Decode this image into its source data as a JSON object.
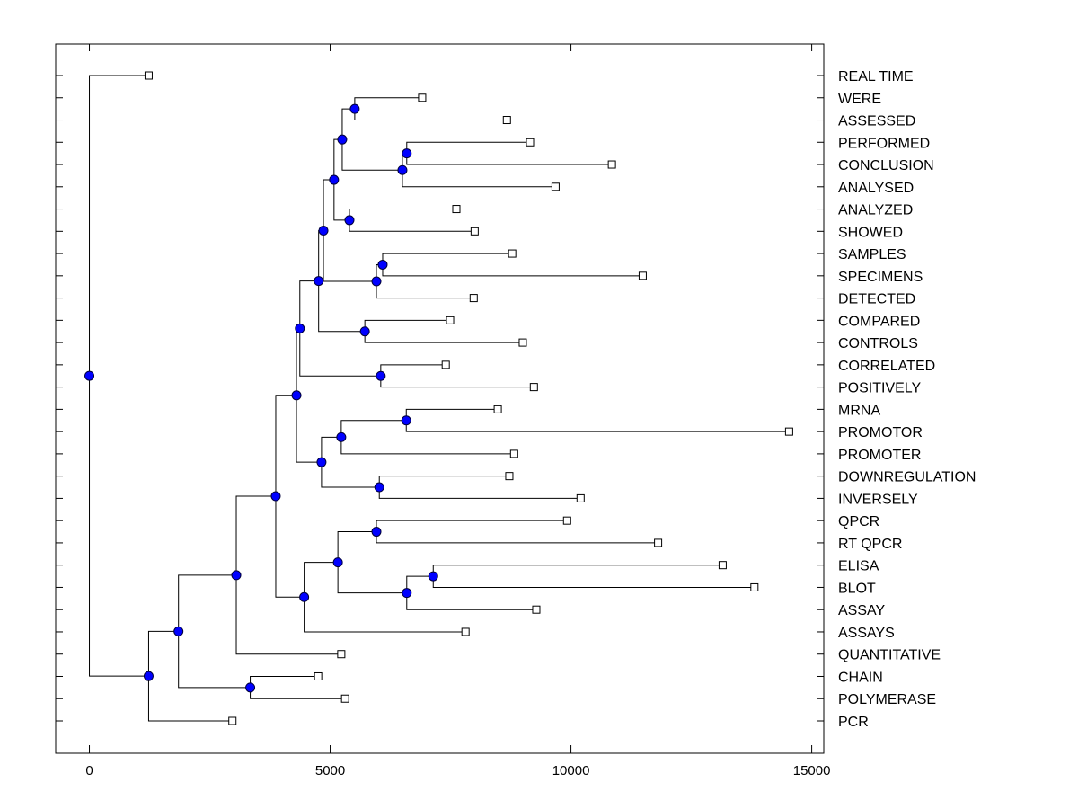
{
  "chart_data": {
    "type": "dendrogram",
    "title": "",
    "xlabel": "",
    "ylabel": "",
    "xlim": [
      -700,
      15250
    ],
    "x_ticks": [
      0,
      5000,
      10000,
      15000
    ],
    "x_tick_labels": [
      "0",
      "5000",
      "10000",
      "15000"
    ],
    "grid": false,
    "leaf_label_position": "right",
    "colors": {
      "node_fill": "#0000ff",
      "node_stroke": "#00003a",
      "leaf_fill": "#ffffff",
      "line": "#000000"
    },
    "leaves": [
      {
        "label": "REAL TIME",
        "value": 1230
      },
      {
        "label": "WERE",
        "value": 6910
      },
      {
        "label": "ASSESSED",
        "value": 8670
      },
      {
        "label": "PERFORMED",
        "value": 9150
      },
      {
        "label": "CONCLUSION",
        "value": 10850
      },
      {
        "label": "ANALYSED",
        "value": 9680
      },
      {
        "label": "ANALYZED",
        "value": 7620
      },
      {
        "label": "SHOWED",
        "value": 8000
      },
      {
        "label": "SAMPLES",
        "value": 8780
      },
      {
        "label": "SPECIMENS",
        "value": 11490
      },
      {
        "label": "DETECTED",
        "value": 7980
      },
      {
        "label": "COMPARED",
        "value": 7490
      },
      {
        "label": "CONTROLS",
        "value": 9000
      },
      {
        "label": "CORRELATED",
        "value": 7400
      },
      {
        "label": "POSITIVELY",
        "value": 9230
      },
      {
        "label": "MRNA",
        "value": 8480
      },
      {
        "label": "PROMOTOR",
        "value": 14530
      },
      {
        "label": "PROMOTER",
        "value": 8820
      },
      {
        "label": "DOWNREGULATION",
        "value": 8720
      },
      {
        "label": "INVERSELY",
        "value": 10200
      },
      {
        "label": "QPCR",
        "value": 9920
      },
      {
        "label": "RT QPCR",
        "value": 11810
      },
      {
        "label": "ELISA",
        "value": 13150
      },
      {
        "label": "BLOT",
        "value": 13810
      },
      {
        "label": "ASSAY",
        "value": 9280
      },
      {
        "label": "ASSAYS",
        "value": 7810
      },
      {
        "label": "QUANTITATIVE",
        "value": 5230
      },
      {
        "label": "CHAIN",
        "value": 4750
      },
      {
        "label": "POLYMERASE",
        "value": 5310
      },
      {
        "label": "PCR",
        "value": 2970
      }
    ],
    "nodes": [
      {
        "id": "n1",
        "value": 5510,
        "children": [
          "L1",
          "L2"
        ]
      },
      {
        "id": "n2",
        "value": 6590,
        "children": [
          "L3",
          "L4"
        ]
      },
      {
        "id": "n3",
        "value": 6500,
        "children": [
          "n2",
          "L5"
        ]
      },
      {
        "id": "n4",
        "value": 5250,
        "children": [
          "n1",
          "n3"
        ]
      },
      {
        "id": "n5",
        "value": 5400,
        "children": [
          "L6",
          "L7"
        ]
      },
      {
        "id": "n6",
        "value": 5080,
        "children": [
          "n4",
          "n5"
        ]
      },
      {
        "id": "n7",
        "value": 6090,
        "children": [
          "L8",
          "L9"
        ]
      },
      {
        "id": "n8",
        "value": 5960,
        "children": [
          "n7",
          "L10"
        ]
      },
      {
        "id": "n9",
        "value": 4860,
        "children": [
          "n6",
          "n8"
        ]
      },
      {
        "id": "n10",
        "value": 5720,
        "children": [
          "L11",
          "L12"
        ]
      },
      {
        "id": "n11",
        "value": 4760,
        "children": [
          "n9",
          "n10"
        ]
      },
      {
        "id": "n12",
        "value": 6050,
        "children": [
          "L13",
          "L14"
        ]
      },
      {
        "id": "n13",
        "value": 4370,
        "children": [
          "n11",
          "n12"
        ]
      },
      {
        "id": "n14",
        "value": 6580,
        "children": [
          "L15",
          "L16"
        ]
      },
      {
        "id": "n15",
        "value": 5230,
        "children": [
          "n14",
          "L17"
        ]
      },
      {
        "id": "n16",
        "value": 6020,
        "children": [
          "L18",
          "L19"
        ]
      },
      {
        "id": "n17",
        "value": 4820,
        "children": [
          "n15",
          "n16"
        ]
      },
      {
        "id": "n18",
        "value": 4300,
        "children": [
          "n13",
          "n17"
        ]
      },
      {
        "id": "n19",
        "value": 5960,
        "children": [
          "L20",
          "L21"
        ]
      },
      {
        "id": "n20",
        "value": 7140,
        "children": [
          "L22",
          "L23"
        ]
      },
      {
        "id": "n21",
        "value": 6590,
        "children": [
          "n20",
          "L24"
        ]
      },
      {
        "id": "n22",
        "value": 5160,
        "children": [
          "n19",
          "n21"
        ]
      },
      {
        "id": "n23",
        "value": 4460,
        "children": [
          "n22",
          "L25"
        ]
      },
      {
        "id": "n24",
        "value": 3870,
        "children": [
          "n18",
          "n23"
        ]
      },
      {
        "id": "n25",
        "value": 3050,
        "children": [
          "n24",
          "L26"
        ]
      },
      {
        "id": "n26",
        "value": 3340,
        "children": [
          "L27",
          "L28"
        ]
      },
      {
        "id": "n27",
        "value": 1850,
        "children": [
          "n25",
          "n26"
        ]
      },
      {
        "id": "n28",
        "value": 1230,
        "children": [
          "n27",
          "L29"
        ]
      },
      {
        "id": "root",
        "value": 0,
        "children": [
          "L0",
          "n28"
        ]
      }
    ]
  }
}
